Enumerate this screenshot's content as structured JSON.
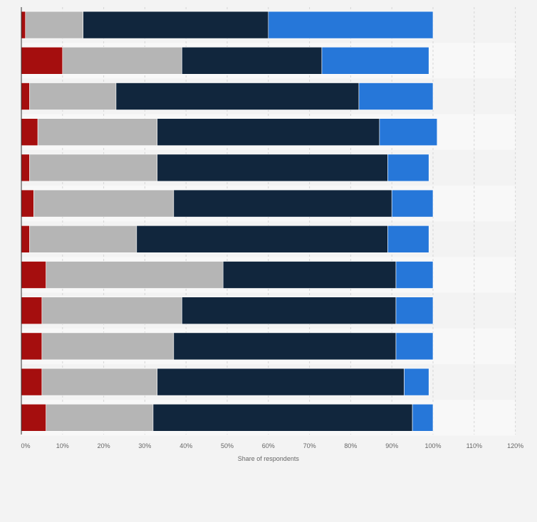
{
  "chart_data": {
    "type": "bar",
    "orientation": "horizontal",
    "stacked": true,
    "xlabel": "Share of respondents",
    "ylabel": "",
    "xlim": [
      0,
      120
    ],
    "ticks": [
      0,
      10,
      20,
      30,
      40,
      50,
      60,
      70,
      80,
      90,
      100,
      110,
      120
    ],
    "tick_labels": [
      "0%",
      "10%",
      "20%",
      "30%",
      "40%",
      "50%",
      "60%",
      "70%",
      "80%",
      "90%",
      "100%",
      "110%",
      "120%"
    ],
    "categories": [
      "",
      "",
      "",
      "",
      "",
      "",
      "",
      "",
      "",
      "",
      "",
      ""
    ],
    "grid": true,
    "legend": "none",
    "series": [
      {
        "color": "#a50e0e",
        "values": [
          1,
          10,
          2,
          4,
          2,
          3,
          2,
          6,
          5,
          5,
          5,
          6
        ]
      },
      {
        "color": "#b5b5b5",
        "values": [
          14,
          29,
          21,
          29,
          31,
          34,
          26,
          43,
          34,
          32,
          28,
          26
        ]
      },
      {
        "color": "#11263d",
        "values": [
          45,
          34,
          59,
          54,
          56,
          53,
          61,
          42,
          52,
          54,
          60,
          63
        ]
      },
      {
        "color": "#2677d9",
        "values": [
          40,
          26,
          18,
          14,
          10,
          10,
          10,
          9,
          9,
          9,
          6,
          5
        ]
      }
    ]
  }
}
